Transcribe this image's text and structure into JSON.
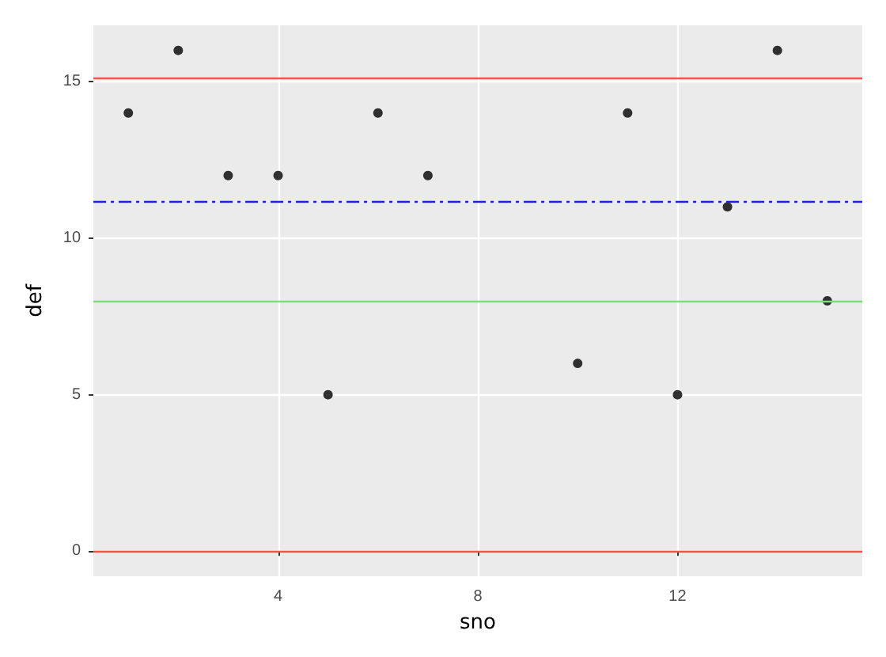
{
  "chart_data": {
    "type": "scatter",
    "xlabel": "sno",
    "ylabel": "def",
    "x": [
      1,
      2,
      3,
      4,
      5,
      6,
      7,
      10,
      11,
      12,
      13,
      14,
      15
    ],
    "series": [
      {
        "color": "#000000",
        "values": [
          14,
          16,
          12,
          12,
          5,
          14,
          12,
          6,
          14,
          5,
          11,
          16,
          8
        ]
      }
    ],
    "xlim": [
      0.3,
      15.7
    ],
    "ylim": [
      -0.8,
      16.8
    ],
    "xticks": [
      4,
      8,
      12
    ],
    "yticks": [
      0,
      5,
      10,
      15
    ],
    "ref_lines": [
      {
        "axis": "y",
        "value": 15.1,
        "color": "#f8524a",
        "line_style": "solid"
      },
      {
        "axis": "y",
        "value": 0,
        "color": "#f8524a",
        "line_style": "solid"
      },
      {
        "axis": "y",
        "value": 11.15,
        "color": "#1f1fe0",
        "line_style": "dashed"
      },
      {
        "axis": "y",
        "value": 8,
        "color": "#7ae07a",
        "line_style": "solid"
      }
    ],
    "grid": true,
    "marker": "circle"
  }
}
